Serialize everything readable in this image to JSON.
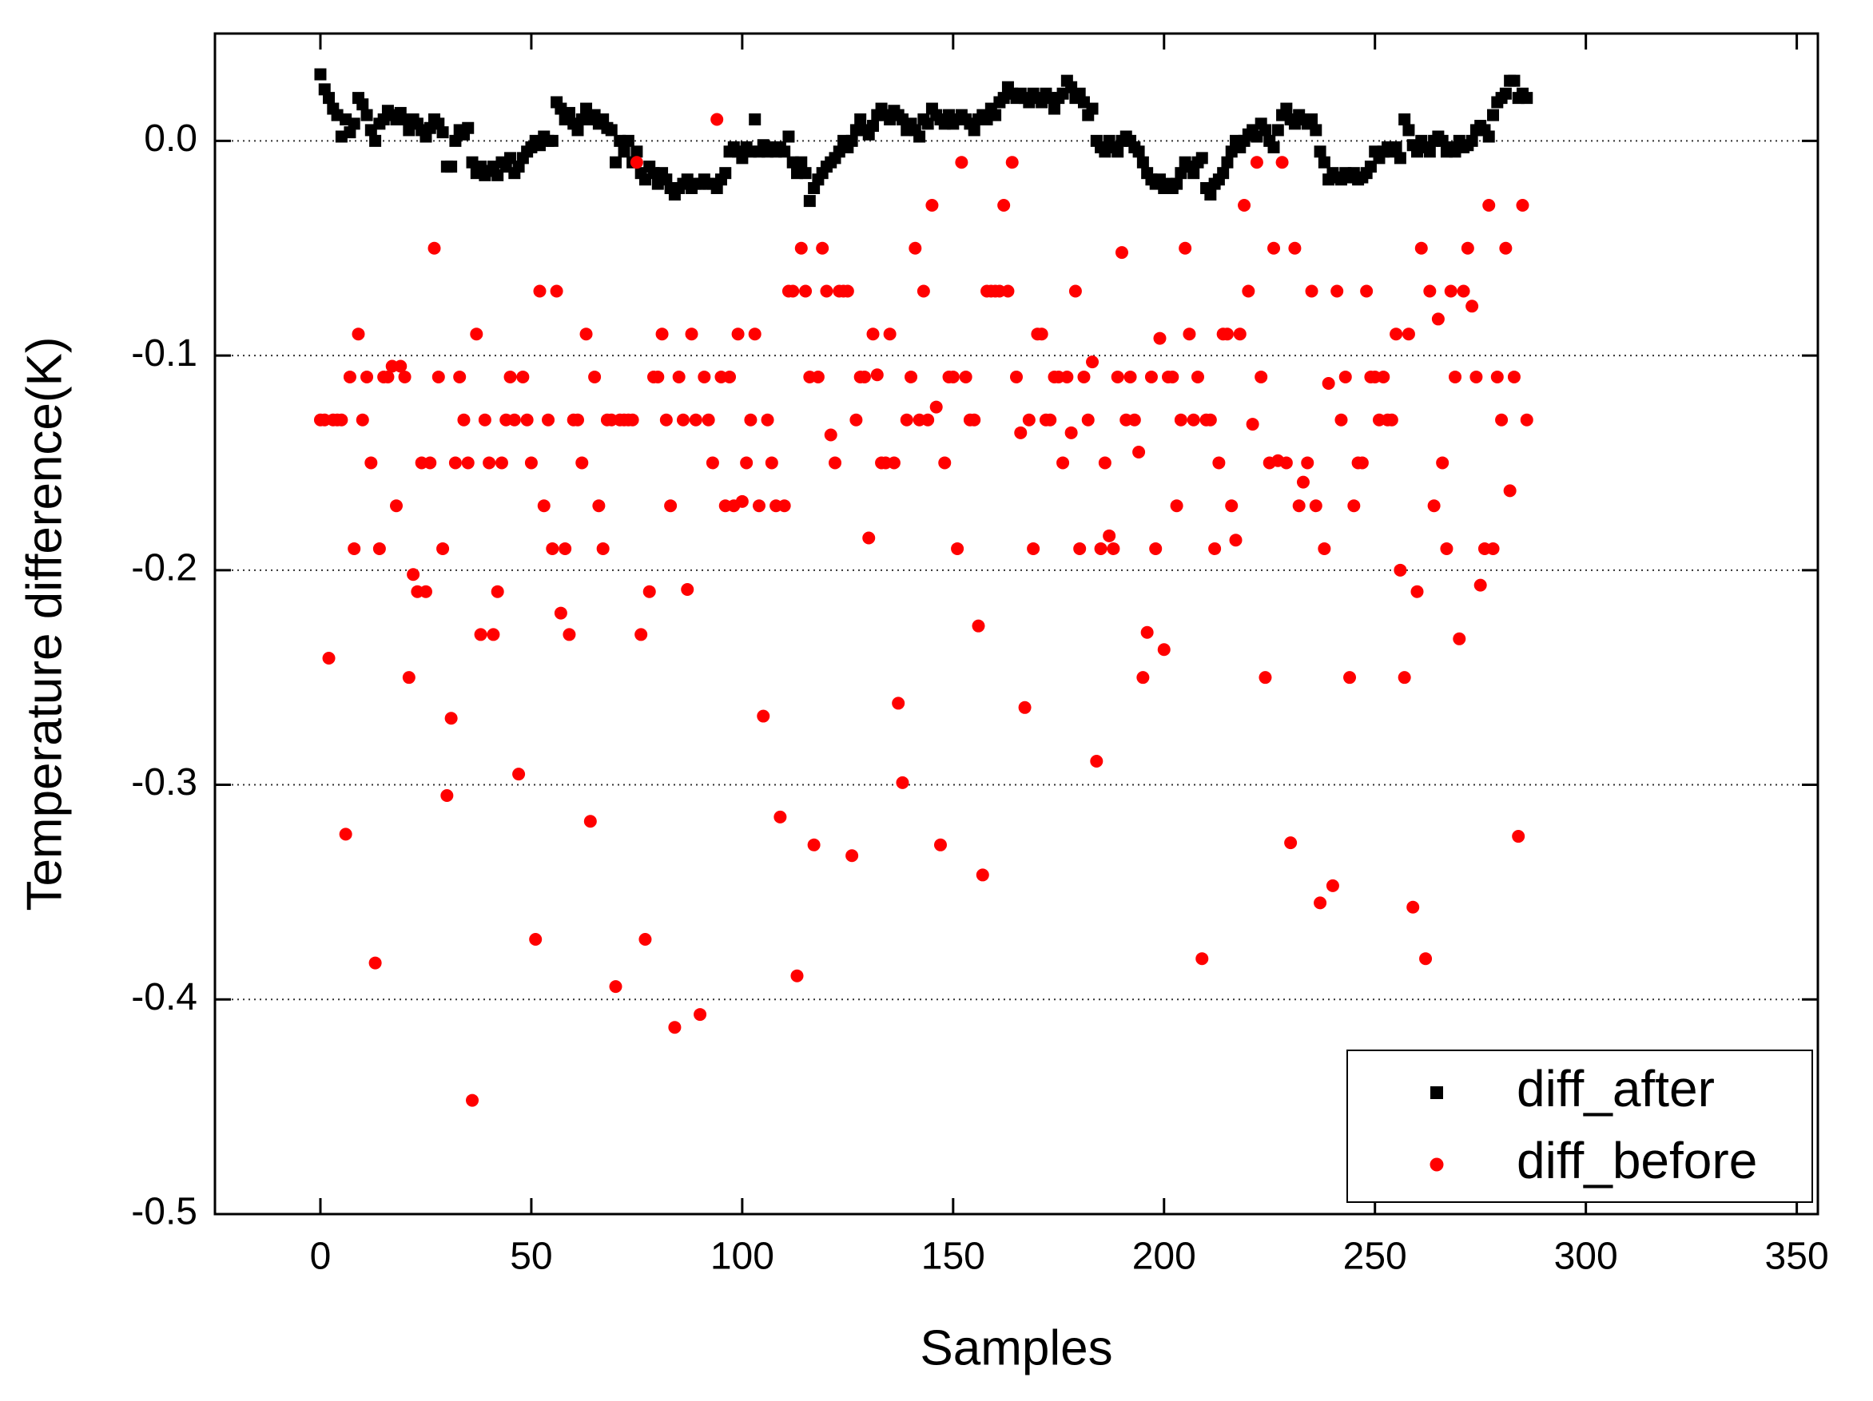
{
  "chart_data": {
    "type": "scatter",
    "xlabel": "Samples",
    "ylabel": "Temperature difference(K)",
    "xlim": [
      -25,
      355
    ],
    "ylim": [
      -0.5,
      0.05
    ],
    "xticks": [
      0,
      50,
      100,
      150,
      200,
      250,
      300,
      350
    ],
    "yticks": [
      {
        "value": 0,
        "label": "0.0"
      },
      -0.1,
      -0.2,
      -0.3,
      -0.4,
      -0.5
    ],
    "grid": true,
    "legend": "lower right",
    "x": [
      0,
      1,
      2,
      3,
      4,
      5,
      6,
      7,
      8,
      9,
      10,
      11,
      12,
      13,
      14,
      15,
      16,
      17,
      18,
      19,
      20,
      21,
      22,
      23,
      24,
      25,
      26,
      27,
      28,
      29,
      30,
      31,
      32,
      33,
      34,
      35,
      36,
      37,
      38,
      39,
      40,
      41,
      42,
      43,
      44,
      45,
      46,
      47,
      48,
      49,
      50,
      51,
      52,
      53,
      54,
      55,
      56,
      57,
      58,
      59,
      60,
      61,
      62,
      63,
      64,
      65,
      66,
      67,
      68,
      69,
      70,
      71,
      72,
      73,
      74,
      75,
      76,
      77,
      78,
      79,
      80,
      81,
      82,
      83,
      84,
      85,
      86,
      87,
      88,
      89,
      90,
      91,
      92,
      93,
      94,
      95,
      96,
      97,
      98,
      99,
      100,
      101,
      102,
      103,
      104,
      105,
      106,
      107,
      108,
      109,
      110,
      111,
      112,
      113,
      114,
      115,
      116,
      117,
      118,
      119,
      120,
      121,
      122,
      123,
      124,
      125,
      126,
      127,
      128,
      129,
      130,
      131,
      132,
      133,
      134,
      135,
      136,
      137,
      138,
      139,
      140,
      141,
      142,
      143,
      144,
      145,
      146,
      147,
      148,
      149,
      150,
      151,
      152,
      153,
      154,
      155,
      156,
      157,
      158,
      159,
      160,
      161,
      162,
      163,
      164,
      165,
      166,
      167,
      168,
      169,
      170,
      171,
      172,
      173,
      174,
      175,
      176,
      177,
      178,
      179,
      180,
      181,
      182,
      183,
      184,
      185,
      186,
      187,
      188,
      189,
      190,
      191,
      192,
      193,
      194,
      195,
      196,
      197,
      198,
      199,
      200,
      201,
      202,
      203,
      204,
      205,
      206,
      207,
      208,
      209,
      210,
      211,
      212,
      213,
      214,
      215,
      216,
      217,
      218,
      219,
      220,
      221,
      222,
      223,
      224,
      225,
      226,
      227,
      228,
      229,
      230,
      231,
      232,
      233,
      234,
      235,
      236,
      237,
      238,
      239,
      240,
      241,
      242,
      243,
      244,
      245,
      246,
      247,
      248,
      249,
      250,
      251,
      252,
      253,
      254,
      255,
      256,
      257,
      258,
      259,
      260,
      261,
      262,
      263,
      264,
      265,
      266,
      267,
      268,
      269,
      270,
      271,
      272,
      273,
      274,
      275,
      276,
      277,
      278,
      279,
      280,
      281,
      282,
      283,
      284,
      285,
      286
    ],
    "series": [
      {
        "name": "diff_after",
        "color": "#000000",
        "marker": "square",
        "values": [
          0.031,
          0.024,
          0.02,
          0.015,
          0.012,
          0.002,
          0.01,
          0.004,
          0.008,
          0.02,
          0.017,
          0.012,
          0.005,
          0.0,
          0.008,
          0.01,
          0.014,
          0.012,
          0.01,
          0.013,
          0.01,
          0.005,
          0.01,
          0.008,
          0.005,
          0.002,
          0.006,
          0.01,
          0.008,
          0.004,
          -0.012,
          -0.012,
          0.0,
          0.005,
          0.003,
          0.006,
          -0.01,
          -0.015,
          -0.012,
          -0.016,
          -0.014,
          -0.012,
          -0.016,
          -0.01,
          -0.012,
          -0.008,
          -0.015,
          -0.012,
          -0.008,
          -0.005,
          -0.003,
          0.0,
          -0.002,
          0.002,
          0.0,
          0.0,
          0.018,
          0.015,
          0.01,
          0.013,
          0.008,
          0.005,
          0.01,
          0.015,
          0.01,
          0.012,
          0.008,
          0.01,
          0.006,
          0.005,
          -0.01,
          0.0,
          -0.005,
          0.0,
          -0.01,
          -0.005,
          -0.015,
          -0.018,
          -0.012,
          -0.015,
          -0.02,
          -0.015,
          -0.018,
          -0.022,
          -0.025,
          -0.022,
          -0.02,
          -0.018,
          -0.022,
          -0.02,
          -0.02,
          -0.018,
          -0.02,
          -0.02,
          -0.022,
          -0.018,
          -0.015,
          -0.005,
          -0.003,
          -0.005,
          -0.008,
          -0.003,
          -0.005,
          0.01,
          -0.005,
          -0.002,
          -0.005,
          -0.003,
          -0.005,
          -0.003,
          -0.005,
          0.002,
          -0.01,
          -0.015,
          -0.01,
          -0.015,
          -0.028,
          -0.022,
          -0.018,
          -0.015,
          -0.012,
          -0.01,
          -0.008,
          -0.005,
          0.0,
          -0.003,
          0.0,
          0.005,
          0.01,
          0.005,
          0.003,
          0.007,
          0.012,
          0.015,
          0.012,
          0.01,
          0.014,
          0.012,
          0.01,
          0.005,
          0.008,
          0.005,
          0.002,
          0.01,
          0.008,
          0.015,
          0.012,
          0.01,
          0.008,
          0.012,
          0.008,
          0.01,
          0.012,
          0.01,
          0.008,
          0.005,
          0.01,
          0.012,
          0.01,
          0.015,
          0.012,
          0.018,
          0.02,
          0.025,
          0.022,
          0.02,
          0.022,
          0.02,
          0.018,
          0.022,
          0.02,
          0.018,
          0.022,
          0.02,
          0.015,
          0.02,
          0.022,
          0.028,
          0.025,
          0.02,
          0.022,
          0.018,
          0.012,
          0.015,
          0.0,
          -0.003,
          -0.005,
          0.0,
          -0.003,
          -0.005,
          0.0,
          0.002,
          0.0,
          -0.003,
          -0.005,
          -0.01,
          -0.015,
          -0.018,
          -0.02,
          -0.018,
          -0.022,
          -0.02,
          -0.022,
          -0.02,
          -0.015,
          -0.01,
          -0.012,
          -0.015,
          -0.01,
          -0.008,
          -0.022,
          -0.025,
          -0.02,
          -0.018,
          -0.015,
          -0.01,
          -0.005,
          0.0,
          -0.003,
          0.0,
          0.003,
          0.005,
          0.002,
          0.008,
          0.005,
          0.0,
          -0.003,
          0.005,
          0.012,
          0.015,
          0.01,
          0.008,
          0.012,
          0.01,
          0.008,
          0.01,
          0.005,
          -0.005,
          -0.01,
          -0.018,
          -0.015,
          -0.017,
          -0.018,
          -0.015,
          -0.017,
          -0.015,
          -0.018,
          -0.017,
          -0.015,
          -0.012,
          -0.005,
          -0.008,
          -0.005,
          -0.003,
          -0.005,
          -0.003,
          -0.008,
          0.01,
          0.005,
          -0.002,
          -0.005,
          0.0,
          -0.003,
          -0.005,
          0.0,
          0.002,
          0.0,
          -0.005,
          -0.003,
          -0.005,
          0.0,
          -0.003,
          -0.002,
          0.0,
          0.005,
          0.007,
          0.005,
          0.002,
          0.012,
          0.018,
          0.02,
          0.022,
          0.028,
          0.028,
          0.02,
          0.022,
          0.02
        ]
      },
      {
        "name": "diff_before",
        "color": "#ff0000",
        "marker": "circle",
        "values": [
          -0.13,
          -0.13,
          -0.241,
          -0.13,
          -0.13,
          -0.13,
          -0.323,
          -0.11,
          -0.19,
          -0.09,
          -0.13,
          -0.11,
          -0.15,
          -0.383,
          -0.19,
          -0.11,
          -0.11,
          -0.105,
          -0.17,
          -0.105,
          -0.11,
          -0.25,
          -0.202,
          -0.21,
          -0.15,
          -0.21,
          -0.15,
          -0.05,
          -0.11,
          -0.19,
          -0.305,
          -0.269,
          -0.15,
          -0.11,
          -0.13,
          -0.15,
          -0.447,
          -0.09,
          -0.23,
          -0.13,
          -0.15,
          -0.23,
          -0.21,
          -0.15,
          -0.13,
          -0.11,
          -0.13,
          -0.295,
          -0.11,
          -0.13,
          -0.15,
          -0.372,
          -0.07,
          -0.17,
          -0.13,
          -0.19,
          -0.07,
          -0.22,
          -0.19,
          -0.23,
          -0.13,
          -0.13,
          -0.15,
          -0.09,
          -0.317,
          -0.11,
          -0.17,
          -0.19,
          -0.13,
          -0.13,
          -0.394,
          -0.13,
          -0.13,
          -0.13,
          -0.13,
          -0.01,
          -0.23,
          -0.372,
          -0.21,
          -0.11,
          -0.11,
          -0.09,
          -0.13,
          -0.17,
          -0.413,
          -0.11,
          -0.13,
          -0.209,
          -0.09,
          -0.13,
          -0.407,
          -0.11,
          -0.13,
          -0.15,
          0.01,
          -0.11,
          -0.17,
          -0.11,
          -0.17,
          -0.09,
          -0.168,
          -0.15,
          -0.13,
          -0.09,
          -0.17,
          -0.268,
          -0.13,
          -0.15,
          -0.17,
          -0.315,
          -0.17,
          -0.07,
          -0.07,
          -0.389,
          -0.05,
          -0.07,
          -0.11,
          -0.328,
          -0.11,
          -0.05,
          -0.07,
          -0.137,
          -0.15,
          -0.07,
          -0.07,
          -0.07,
          -0.333,
          -0.13,
          -0.11,
          -0.11,
          -0.185,
          -0.09,
          -0.109,
          -0.15,
          -0.15,
          -0.09,
          -0.15,
          -0.262,
          -0.299,
          -0.13,
          -0.11,
          -0.05,
          -0.13,
          -0.07,
          -0.13,
          -0.03,
          -0.124,
          -0.328,
          -0.15,
          -0.11,
          -0.11,
          -0.19,
          -0.01,
          -0.11,
          -0.13,
          -0.13,
          -0.226,
          -0.342,
          -0.07,
          -0.07,
          -0.07,
          -0.07,
          -0.03,
          -0.07,
          -0.01,
          -0.11,
          -0.136,
          -0.264,
          -0.13,
          -0.19,
          -0.09,
          -0.09,
          -0.13,
          -0.13,
          -0.11,
          -0.11,
          -0.15,
          -0.11,
          -0.136,
          -0.07,
          -0.19,
          -0.11,
          -0.13,
          -0.103,
          -0.289,
          -0.19,
          -0.15,
          -0.184,
          -0.19,
          -0.11,
          -0.052,
          -0.13,
          -0.11,
          -0.13,
          -0.145,
          -0.25,
          -0.229,
          -0.11,
          -0.19,
          -0.092,
          -0.237,
          -0.11,
          -0.11,
          -0.17,
          -0.13,
          -0.05,
          -0.09,
          -0.13,
          -0.11,
          -0.381,
          -0.13,
          -0.13,
          -0.19,
          -0.15,
          -0.09,
          -0.09,
          -0.17,
          -0.186,
          -0.09,
          -0.03,
          -0.07,
          -0.132,
          -0.01,
          -0.11,
          -0.25,
          -0.15,
          -0.05,
          -0.149,
          -0.01,
          -0.15,
          -0.327,
          -0.05,
          -0.17,
          -0.159,
          -0.15,
          -0.07,
          -0.17,
          -0.355,
          -0.19,
          -0.113,
          -0.347,
          -0.07,
          -0.13,
          -0.11,
          -0.25,
          -0.17,
          -0.15,
          -0.15,
          -0.07,
          -0.11,
          -0.11,
          -0.13,
          -0.11,
          -0.13,
          -0.13,
          -0.09,
          -0.2,
          -0.25,
          -0.09,
          -0.357,
          -0.21,
          -0.05,
          -0.381,
          -0.07,
          -0.17,
          -0.083,
          -0.15,
          -0.19,
          -0.07,
          -0.11,
          -0.232,
          -0.07,
          -0.05,
          -0.077,
          -0.11,
          -0.207,
          -0.19,
          -0.03,
          -0.19,
          -0.11,
          -0.13,
          -0.05,
          -0.163,
          -0.11,
          -0.324,
          -0.03,
          -0.13
        ]
      }
    ]
  }
}
